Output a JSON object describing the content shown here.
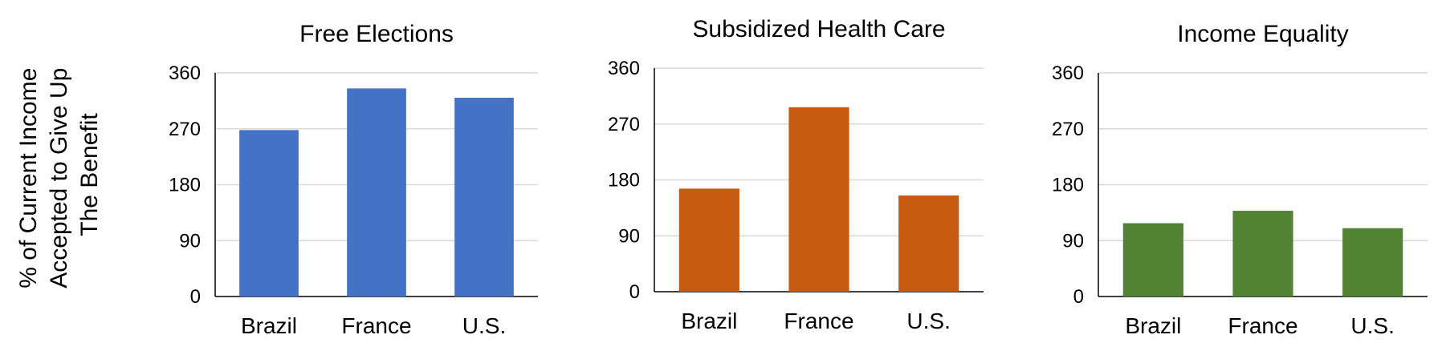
{
  "figure": {
    "ylabel_lines": [
      "% of Current Income",
      "Accepted to Give Up",
      "The Benefit"
    ]
  },
  "chart_data": [
    {
      "type": "bar",
      "title": "Free Elections",
      "categories": [
        "Brazil",
        "France",
        "U.S."
      ],
      "values": [
        268,
        335,
        320
      ],
      "ylim": [
        0,
        360
      ],
      "yticks": [
        0,
        90,
        180,
        270,
        360
      ],
      "grid": true,
      "color": "#4472C4"
    },
    {
      "type": "bar",
      "title": "Subsidized Health Care",
      "categories": [
        "Brazil",
        "France",
        "U.S."
      ],
      "values": [
        166,
        297,
        155
      ],
      "ylim": [
        0,
        360
      ],
      "yticks": [
        0,
        90,
        180,
        270,
        360
      ],
      "grid": true,
      "color": "#C55A11"
    },
    {
      "type": "bar",
      "title": "Income Equality",
      "categories": [
        "Brazil",
        "France",
        "U.S."
      ],
      "values": [
        118,
        138,
        110
      ],
      "ylim": [
        0,
        360
      ],
      "yticks": [
        0,
        90,
        180,
        270,
        360
      ],
      "grid": true,
      "color": "#548235"
    }
  ]
}
